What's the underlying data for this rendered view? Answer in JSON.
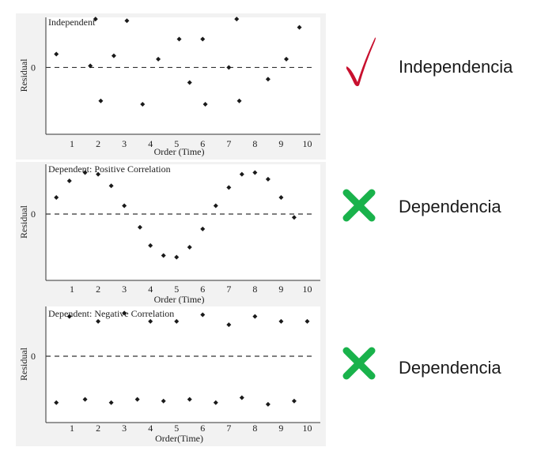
{
  "colors": {
    "panel_background": "#f2f2f2",
    "axis": "#333333",
    "point": "#1a1a1a",
    "check": "#c8102e",
    "cross": "#19b24b",
    "verdict_text": "#1a1a1a"
  },
  "icons": {
    "independent": "check-icon",
    "dependent": "cross-icon"
  },
  "chart_data": [
    {
      "type": "scatter",
      "title": "Independent",
      "xlabel": "Order (Time)",
      "ylabel": "Residual",
      "x_ticks": [
        "1",
        "2",
        "3",
        "4",
        "5",
        "6",
        "7",
        "8",
        "9",
        "10"
      ],
      "y_ticks": [
        "0"
      ],
      "xlim": [
        0,
        10.5
      ],
      "ylim": [
        -2,
        1.5
      ],
      "zero_line": "dashed",
      "grid": false,
      "points": [
        {
          "x": 0.4,
          "y": 0.4
        },
        {
          "x": 1.7,
          "y": 0.05
        },
        {
          "x": 1.9,
          "y": 1.45
        },
        {
          "x": 2.1,
          "y": -1.0
        },
        {
          "x": 2.6,
          "y": 0.35
        },
        {
          "x": 3.1,
          "y": 1.4
        },
        {
          "x": 3.7,
          "y": -1.1
        },
        {
          "x": 4.3,
          "y": 0.25
        },
        {
          "x": 5.1,
          "y": 0.85
        },
        {
          "x": 5.5,
          "y": -0.45
        },
        {
          "x": 6.0,
          "y": 0.85
        },
        {
          "x": 6.1,
          "y": -1.1
        },
        {
          "x": 7.0,
          "y": 0.0
        },
        {
          "x": 7.3,
          "y": 1.45
        },
        {
          "x": 7.4,
          "y": -1.0
        },
        {
          "x": 8.5,
          "y": -0.35
        },
        {
          "x": 9.2,
          "y": 0.25
        },
        {
          "x": 9.7,
          "y": 1.2
        }
      ],
      "verdict": "Independencia"
    },
    {
      "type": "scatter",
      "title": "Dependent: Positive Correlation",
      "xlabel": "Order (Time)",
      "ylabel": "Residual",
      "x_ticks": [
        "1",
        "2",
        "3",
        "4",
        "5",
        "6",
        "7",
        "8",
        "9",
        "10"
      ],
      "y_ticks": [
        "0"
      ],
      "xlim": [
        0,
        10.5
      ],
      "ylim": [
        -2,
        1.5
      ],
      "zero_line": "dashed",
      "grid": false,
      "points": [
        {
          "x": 0.4,
          "y": 0.5
        },
        {
          "x": 0.9,
          "y": 1.0
        },
        {
          "x": 1.5,
          "y": 1.25
        },
        {
          "x": 2.0,
          "y": 1.2
        },
        {
          "x": 2.5,
          "y": 0.85
        },
        {
          "x": 3.0,
          "y": 0.25
        },
        {
          "x": 3.6,
          "y": -0.4
        },
        {
          "x": 4.0,
          "y": -0.95
        },
        {
          "x": 4.5,
          "y": -1.25
        },
        {
          "x": 5.0,
          "y": -1.3
        },
        {
          "x": 5.5,
          "y": -1.0
        },
        {
          "x": 6.0,
          "y": -0.45
        },
        {
          "x": 6.5,
          "y": 0.25
        },
        {
          "x": 7.0,
          "y": 0.8
        },
        {
          "x": 7.5,
          "y": 1.2
        },
        {
          "x": 8.0,
          "y": 1.25
        },
        {
          "x": 8.5,
          "y": 1.05
        },
        {
          "x": 9.0,
          "y": 0.5
        },
        {
          "x": 9.5,
          "y": -0.1
        }
      ],
      "verdict": "Dependencia"
    },
    {
      "type": "scatter",
      "title": "Dependent: Negative Correlation",
      "xlabel": "Order(Time)",
      "ylabel": "Residual",
      "x_ticks": [
        "1",
        "2",
        "3",
        "4",
        "5",
        "6",
        "7",
        "8",
        "9",
        "10"
      ],
      "y_ticks": [
        "0"
      ],
      "xlim": [
        0,
        10.5
      ],
      "ylim": [
        -2,
        1.5
      ],
      "zero_line": "dashed",
      "grid": false,
      "points": [
        {
          "x": 0.4,
          "y": -1.4
        },
        {
          "x": 0.9,
          "y": 1.2
        },
        {
          "x": 1.5,
          "y": -1.3
        },
        {
          "x": 2.0,
          "y": 1.05
        },
        {
          "x": 2.5,
          "y": -1.4
        },
        {
          "x": 3.0,
          "y": 1.3
        },
        {
          "x": 3.5,
          "y": -1.3
        },
        {
          "x": 4.0,
          "y": 1.05
        },
        {
          "x": 4.5,
          "y": -1.35
        },
        {
          "x": 5.0,
          "y": 1.05
        },
        {
          "x": 5.5,
          "y": -1.3
        },
        {
          "x": 6.0,
          "y": 1.25
        },
        {
          "x": 6.5,
          "y": -1.4
        },
        {
          "x": 7.0,
          "y": 0.95
        },
        {
          "x": 7.5,
          "y": -1.25
        },
        {
          "x": 8.0,
          "y": 1.2
        },
        {
          "x": 8.5,
          "y": -1.45
        },
        {
          "x": 9.0,
          "y": 1.05
        },
        {
          "x": 9.5,
          "y": -1.35
        },
        {
          "x": 10.0,
          "y": 1.05
        }
      ],
      "verdict": "Dependencia"
    }
  ]
}
